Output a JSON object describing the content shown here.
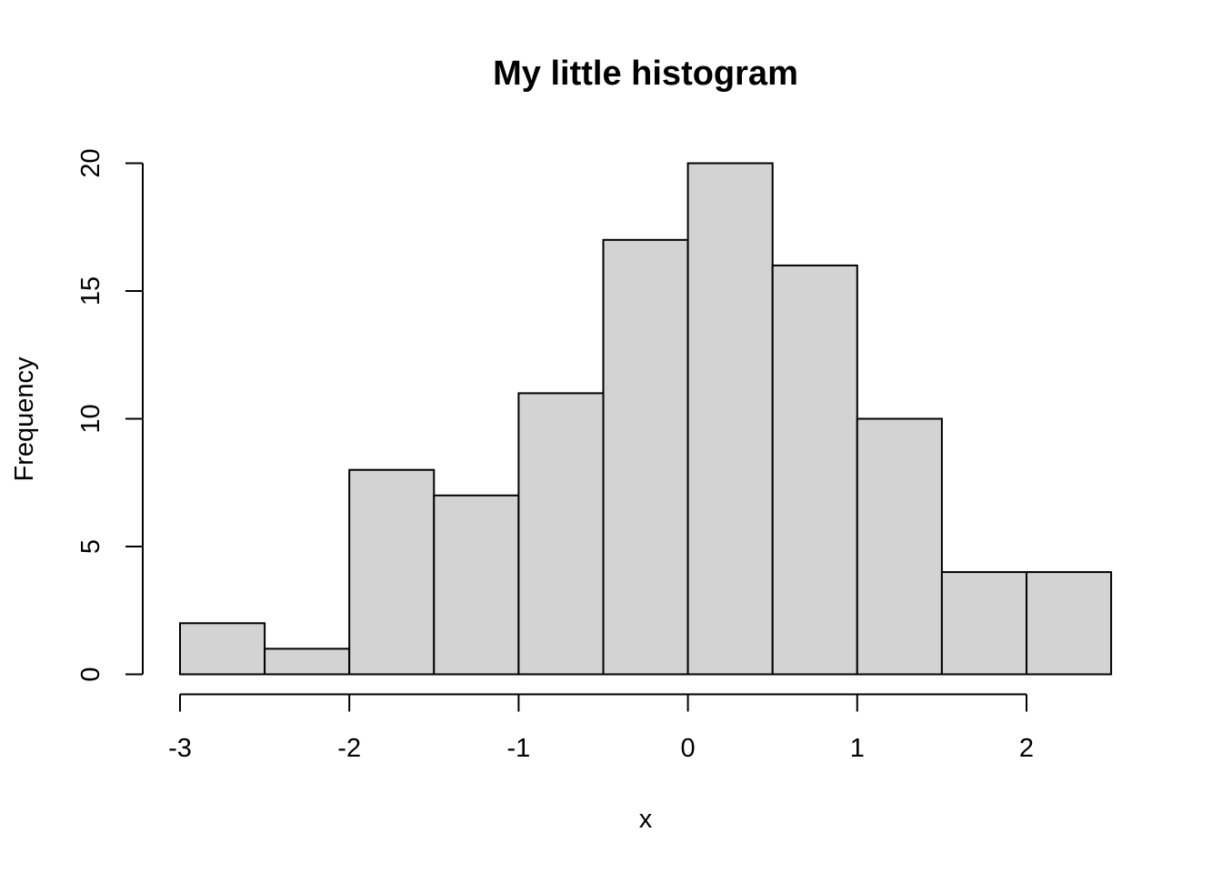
{
  "chart_data": {
    "type": "bar",
    "title": "My little histogram",
    "xlabel": "x",
    "ylabel": "Frequency",
    "bins": [
      {
        "x0": -3.0,
        "x1": -2.5,
        "count": 2
      },
      {
        "x0": -2.5,
        "x1": -2.0,
        "count": 1
      },
      {
        "x0": -2.0,
        "x1": -1.5,
        "count": 8
      },
      {
        "x0": -1.5,
        "x1": -1.0,
        "count": 7
      },
      {
        "x0": -1.0,
        "x1": -0.5,
        "count": 11
      },
      {
        "x0": -0.5,
        "x1": 0.0,
        "count": 17
      },
      {
        "x0": 0.0,
        "x1": 0.5,
        "count": 20
      },
      {
        "x0": 0.5,
        "x1": 1.0,
        "count": 16
      },
      {
        "x0": 1.0,
        "x1": 1.5,
        "count": 10
      },
      {
        "x0": 1.5,
        "x1": 2.0,
        "count": 4
      },
      {
        "x0": 2.0,
        "x1": 2.5,
        "count": 4
      }
    ],
    "xticks": [
      -3,
      -2,
      -1,
      0,
      1,
      2
    ],
    "yticks": [
      0,
      5,
      10,
      15,
      20
    ],
    "xlim": [
      -3,
      2.5
    ],
    "ylim": [
      0,
      20
    ],
    "bar_color": "#d3d3d3",
    "edge_color": "#000000",
    "grid": false,
    "legend": "none"
  }
}
